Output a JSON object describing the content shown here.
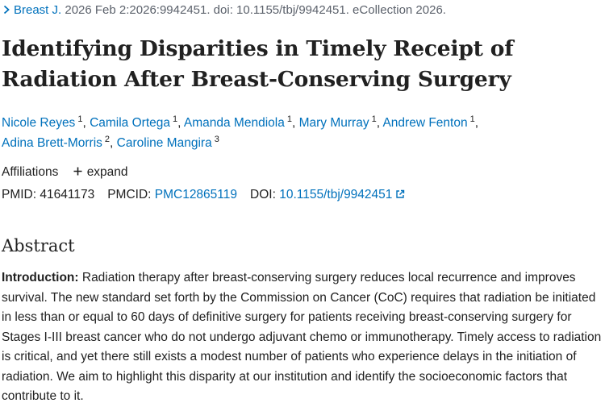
{
  "citation": {
    "journal": "Breast J.",
    "details": " 2026 Feb 2:2026:9942451. doi: 10.1155/tbj/9942451. eCollection 2026."
  },
  "title": "Identifying Disparities in Timely Receipt of Radiation After Breast-Conserving Surgery",
  "authors": [
    {
      "name": "Nicole Reyes",
      "aff": "1"
    },
    {
      "name": "Camila Ortega",
      "aff": "1"
    },
    {
      "name": "Amanda Mendiola",
      "aff": "1"
    },
    {
      "name": "Mary Murray",
      "aff": "1"
    },
    {
      "name": "Andrew Fenton",
      "aff": "1"
    },
    {
      "name": "Adina Brett-Morris",
      "aff": "2"
    },
    {
      "name": "Caroline Mangira",
      "aff": "3"
    }
  ],
  "affiliations": {
    "label": "Affiliations",
    "expand_label": "expand"
  },
  "identifiers": {
    "pmid_label": "PMID:",
    "pmid": "41641173",
    "pmcid_label": "PMCID:",
    "pmcid": "PMC12865119",
    "doi_label": "DOI:",
    "doi": "10.1155/tbj/9942451"
  },
  "abstract": {
    "heading": "Abstract",
    "intro_label": "Introduction:",
    "intro_text": " Radiation therapy after breast-conserving surgery reduces local recurrence and improves survival. The new standard set forth by the Commission on Cancer (CoC) requires that radiation be initiated in less than or equal to 60 days of definitive surgery for patients receiving breast-conserving surgery for Stages I-III breast cancer who do not undergo adjuvant chemo or immunotherapy. Timely access to radiation is critical, and yet there still exists a modest number of patients who experience delays in the initiation of radiation. We aim to highlight this disparity at our institution and identify the socioeconomic factors that contribute to it."
  },
  "colors": {
    "link": "#0071bc",
    "text": "#212121",
    "muted": "#5b616b"
  },
  "icons": {
    "citation": "chevron-right-icon",
    "expand": "plus-icon",
    "doi": "external-link-icon"
  }
}
